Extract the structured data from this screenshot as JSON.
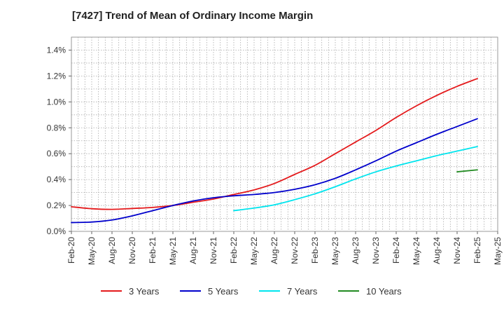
{
  "chart_data": {
    "type": "line",
    "title": "[7427]  Trend of Mean of Ordinary Income Margin",
    "xlabel": "",
    "ylabel": "",
    "x_ticks": [
      "Feb-20",
      "May-20",
      "Aug-20",
      "Nov-20",
      "Feb-21",
      "May-21",
      "Aug-21",
      "Nov-21",
      "Feb-22",
      "May-22",
      "Aug-22",
      "Nov-22",
      "Feb-23",
      "May-23",
      "Aug-23",
      "Nov-23",
      "Feb-24",
      "May-24",
      "Aug-24",
      "Nov-24",
      "Feb-25",
      "May-25"
    ],
    "ylim": [
      0,
      1.5
    ],
    "y_ticks": [
      0,
      0.2,
      0.4,
      0.6,
      0.8,
      1.0,
      1.2,
      1.4
    ],
    "y_tick_labels": [
      "0.0%",
      "0.2%",
      "0.4%",
      "0.6%",
      "0.8%",
      "1.0%",
      "1.2%",
      "1.4%"
    ],
    "grid": true,
    "legend_position": "bottom",
    "series": [
      {
        "name": "3 Years",
        "color": "#e41a1c",
        "x": [
          "Feb-20",
          "May-20",
          "Aug-20",
          "Nov-20",
          "Feb-21",
          "May-21",
          "Aug-21",
          "Nov-21",
          "Feb-22",
          "May-22",
          "Aug-22",
          "Nov-22",
          "Feb-23",
          "May-23",
          "Aug-23",
          "Nov-23",
          "Feb-24",
          "May-24",
          "Aug-24",
          "Nov-24",
          "Feb-25"
        ],
        "values": [
          0.19,
          0.175,
          0.17,
          0.177,
          0.185,
          0.2,
          0.225,
          0.25,
          0.285,
          0.32,
          0.37,
          0.44,
          0.51,
          0.6,
          0.69,
          0.78,
          0.88,
          0.97,
          1.05,
          1.12,
          1.18
        ]
      },
      {
        "name": "5 Years",
        "color": "#0000cc",
        "x": [
          "Feb-20",
          "May-20",
          "Aug-20",
          "Nov-20",
          "Feb-21",
          "May-21",
          "Aug-21",
          "Nov-21",
          "Feb-22",
          "May-22",
          "Aug-22",
          "Nov-22",
          "Feb-23",
          "May-23",
          "Aug-23",
          "Nov-23",
          "Feb-24",
          "May-24",
          "Aug-24",
          "Nov-24",
          "Feb-25"
        ],
        "values": [
          0.068,
          0.072,
          0.088,
          0.12,
          0.16,
          0.2,
          0.235,
          0.26,
          0.275,
          0.285,
          0.3,
          0.325,
          0.36,
          0.41,
          0.475,
          0.545,
          0.62,
          0.685,
          0.75,
          0.81,
          0.87
        ]
      },
      {
        "name": "7 Years",
        "color": "#00e5ee",
        "x": [
          "Feb-22",
          "May-22",
          "Aug-22",
          "Nov-22",
          "Feb-23",
          "May-23",
          "Aug-23",
          "Nov-23",
          "Feb-24",
          "May-24",
          "Aug-24",
          "Nov-24",
          "Feb-25"
        ],
        "values": [
          0.16,
          0.18,
          0.205,
          0.245,
          0.29,
          0.345,
          0.405,
          0.46,
          0.505,
          0.545,
          0.585,
          0.62,
          0.655
        ]
      },
      {
        "name": "10 Years",
        "color": "#228b22",
        "x": [
          "Nov-24",
          "Feb-25"
        ],
        "values": [
          0.46,
          0.475
        ]
      }
    ]
  }
}
